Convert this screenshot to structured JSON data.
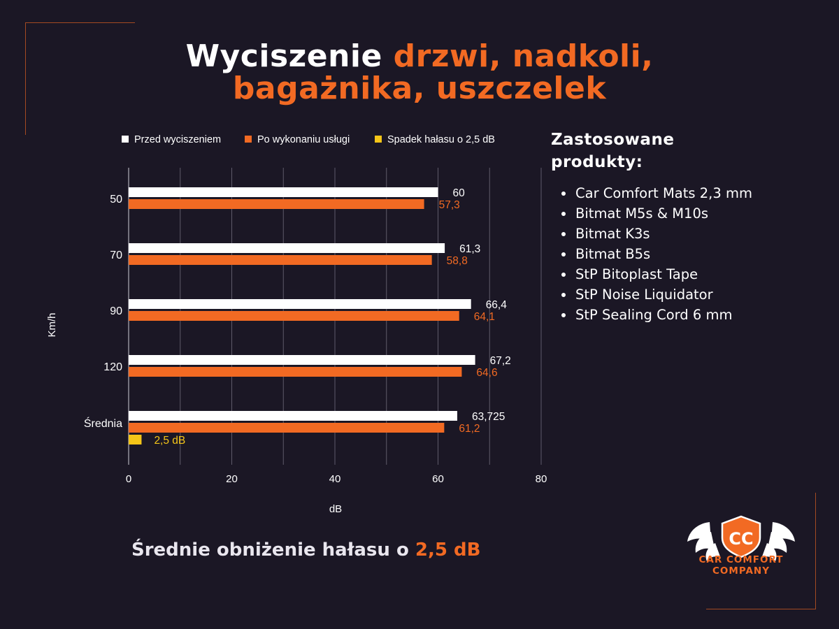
{
  "title": {
    "part1": "Wyciszenie ",
    "part2": "drzwi, nadkoli,",
    "part3": "bagażnika, uszczelek"
  },
  "chart_data": {
    "type": "bar",
    "orientation": "horizontal",
    "categories": [
      "50",
      "70",
      "90",
      "120",
      "Średnia"
    ],
    "series": [
      {
        "name": "Przed wyciszeniem",
        "color": "#ffffff",
        "values": [
          60,
          61.3,
          66.4,
          67.2,
          63.725
        ],
        "labels": [
          "60",
          "61,3",
          "66,4",
          "67,2",
          "63,725"
        ]
      },
      {
        "name": "Po wykonaniu usługi",
        "color": "#f26a23",
        "values": [
          57.3,
          58.8,
          64.1,
          64.6,
          61.2
        ],
        "labels": [
          "57,3",
          "58,8",
          "64,1",
          "64,6",
          "61,2"
        ]
      },
      {
        "name": "Spadek hałasu o 2,5 dB",
        "color": "#f5c518",
        "values": [
          null,
          null,
          null,
          null,
          2.5
        ],
        "labels": [
          "",
          "",
          "",
          "",
          "2,5 dB"
        ]
      }
    ],
    "xlabel": "dB",
    "ylabel": "Km/h",
    "xlim": [
      0,
      80
    ],
    "xticks": [
      "0",
      "20",
      "40",
      "60",
      "80"
    ],
    "grid": true,
    "legend": "top"
  },
  "products": {
    "title": "Zastosowane produkty:",
    "items": [
      "Car Comfort Mats 2,3 mm",
      "Bitmat M5s & M10s",
      "Bitmat K3s",
      "Bitmat B5s",
      "StP Bitoplast Tape",
      "StP Noise Liquidator",
      "StP Sealing Cord 6 mm"
    ]
  },
  "summary": {
    "text": "Średnie obniżenie hałasu o ",
    "highlight": "2,5 dB"
  },
  "logo": {
    "monogram": "CC",
    "line1": "CAR COMFORT",
    "line2": "COMPANY",
    "icon": "winged-shield-logo-icon"
  }
}
